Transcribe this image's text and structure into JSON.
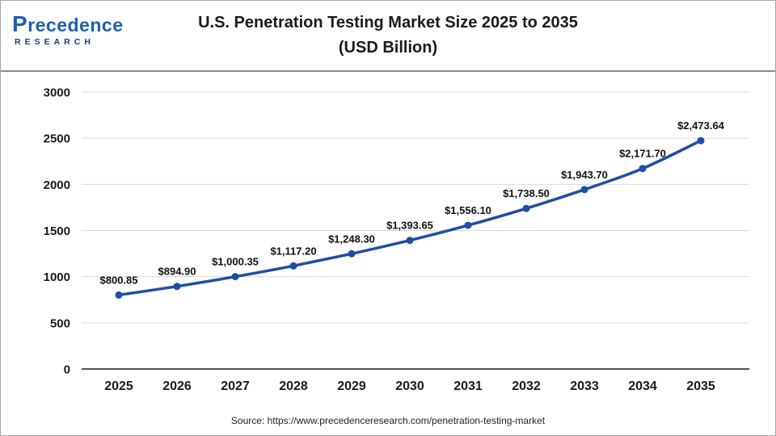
{
  "logo": {
    "line1": "Precedence",
    "line2": "RESEARCH"
  },
  "header": {
    "title_line1": "U.S. Penetration Testing Market Size 2025 to 2035",
    "title_line2": "(USD Billion)"
  },
  "footer": {
    "source": "Source: https://www.precedenceresearch.com/penetration-testing-market"
  },
  "colors": {
    "line": "#1f4fa2",
    "grid": "#d9d9d9",
    "axis": "#1a1a1a",
    "label_text": "#111111",
    "logo_blue": "#1d5fb0"
  },
  "chart_data": {
    "type": "line",
    "title": "U.S. Penetration Testing Market Size 2025 to 2035 (USD Billion)",
    "categories": [
      "2025",
      "2026",
      "2027",
      "2028",
      "2029",
      "2030",
      "2031",
      "2032",
      "2033",
      "2034",
      "2035"
    ],
    "values": [
      800.85,
      894.9,
      1000.35,
      1117.2,
      1248.3,
      1393.65,
      1556.1,
      1738.5,
      1943.7,
      2171.7,
      2473.64
    ],
    "labels": [
      "$800.85",
      "$894.90",
      "$1,000.35",
      "$1,117.20",
      "$1,248.30",
      "$1,393.65",
      "$1,556.10",
      "$1,738.50",
      "$1,943.70",
      "$2,171.70",
      "$2,473.64"
    ],
    "xlabel": "",
    "ylabel": "",
    "ylim": [
      0,
      3000
    ],
    "yticks": [
      "0",
      "500",
      "1000",
      "1500",
      "2000",
      "2500",
      "3000"
    ],
    "grid": true,
    "legend_position": "none"
  }
}
